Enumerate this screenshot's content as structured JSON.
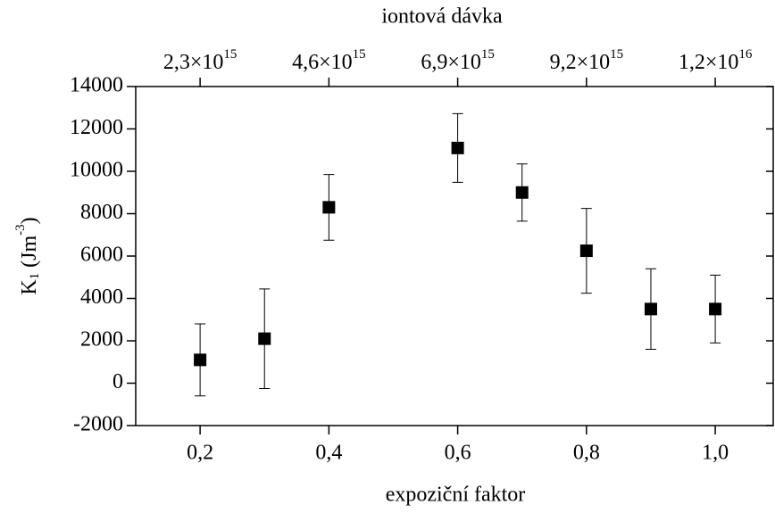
{
  "chart_data": {
    "type": "errorbar_scatter",
    "x_label": "expoziční faktor",
    "x2_label": "iontová dávka",
    "y_label": {
      "symbol": "K",
      "subscript": "1",
      "unit": "(Jm",
      "superscript": "-3",
      "close": ")"
    },
    "x": [
      0.2,
      0.3,
      0.4,
      0.6,
      0.7,
      0.8,
      0.9,
      1.0
    ],
    "series": [
      {
        "name": "K1",
        "color": "#000000",
        "values": [
          1100,
          2100,
          8300,
          11100,
          9000,
          6250,
          3500,
          3500
        ],
        "errors": [
          1700,
          2350,
          1550,
          1620,
          1350,
          2000,
          1900,
          1600
        ]
      }
    ],
    "xlim": [
      0.1,
      1.09
    ],
    "ylim": [
      -2000,
      14000
    ],
    "xticks": [
      {
        "value": 0.2,
        "label": "0,2"
      },
      {
        "value": 0.4,
        "label": "0,4"
      },
      {
        "value": 0.6,
        "label": "0,6"
      },
      {
        "value": 0.8,
        "label": "0,8"
      },
      {
        "value": 1.0,
        "label": "1,0"
      }
    ],
    "x2ticks": [
      {
        "value": 0.2,
        "label": "2,3×10",
        "exponent": "15"
      },
      {
        "value": 0.4,
        "label": "4,6×10",
        "exponent": "15"
      },
      {
        "value": 0.6,
        "label": "6,9×10",
        "exponent": "15"
      },
      {
        "value": 0.8,
        "label": "9,2×10",
        "exponent": "15"
      },
      {
        "value": 1.0,
        "label": "1,2×10",
        "exponent": "16"
      }
    ],
    "yticks": [
      -2000,
      0,
      2000,
      4000,
      6000,
      8000,
      10000,
      12000,
      14000
    ]
  }
}
